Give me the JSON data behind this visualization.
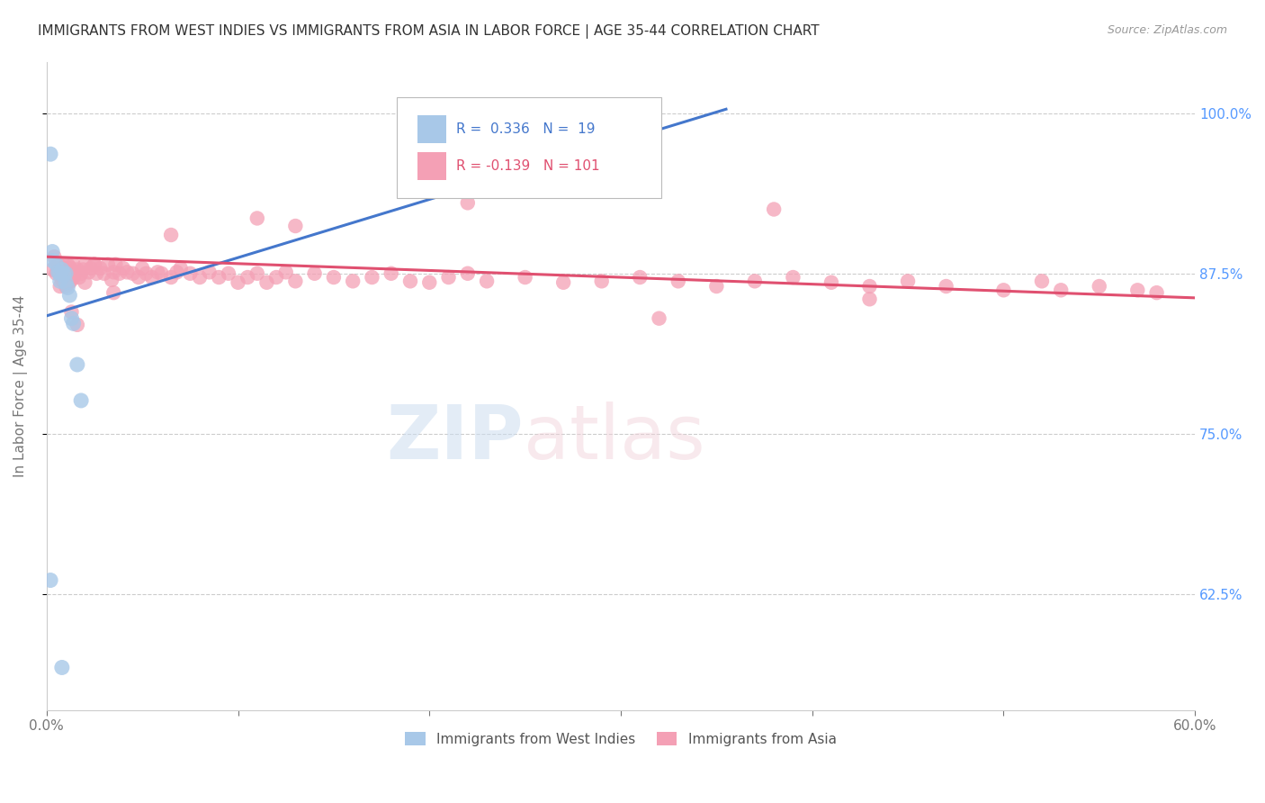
{
  "title": "IMMIGRANTS FROM WEST INDIES VS IMMIGRANTS FROM ASIA IN LABOR FORCE | AGE 35-44 CORRELATION CHART",
  "source": "Source: ZipAtlas.com",
  "ylabel": "In Labor Force | Age 35-44",
  "xlim": [
    0.0,
    0.6
  ],
  "ylim": [
    0.535,
    1.04
  ],
  "xticks": [
    0.0,
    0.1,
    0.2,
    0.3,
    0.4,
    0.5,
    0.6
  ],
  "xticklabels": [
    "0.0%",
    "",
    "",
    "",
    "",
    "",
    "60.0%"
  ],
  "ytick_positions": [
    0.625,
    0.75,
    0.875,
    1.0
  ],
  "ytick_labels": [
    "62.5%",
    "75.0%",
    "87.5%",
    "100.0%"
  ],
  "legend1_label": "Immigrants from West Indies",
  "legend2_label": "Immigrants from Asia",
  "r_blue": 0.336,
  "n_blue": 19,
  "r_pink": -0.139,
  "n_pink": 101,
  "blue_color": "#a8c8e8",
  "pink_color": "#f4a0b5",
  "blue_line_color": "#4477cc",
  "pink_line_color": "#e05070",
  "tick_label_color_right": "#5599ff",
  "blue_line_x0": 0.0,
  "blue_line_y0": 0.842,
  "blue_line_x1": 0.355,
  "blue_line_y1": 1.003,
  "pink_line_x0": 0.0,
  "pink_line_y0": 0.888,
  "pink_line_x1": 0.6,
  "pink_line_y1": 0.856,
  "blue_scatter_x": [
    0.002,
    0.003,
    0.003,
    0.005,
    0.006,
    0.007,
    0.007,
    0.008,
    0.009,
    0.01,
    0.01,
    0.011,
    0.012,
    0.013,
    0.014,
    0.016,
    0.018,
    0.002,
    0.008
  ],
  "blue_scatter_y": [
    0.968,
    0.892,
    0.885,
    0.882,
    0.876,
    0.875,
    0.869,
    0.878,
    0.874,
    0.875,
    0.868,
    0.864,
    0.858,
    0.84,
    0.836,
    0.804,
    0.776,
    0.636,
    0.568
  ],
  "pink_scatter_x": [
    0.003,
    0.004,
    0.005,
    0.006,
    0.007,
    0.007,
    0.008,
    0.008,
    0.009,
    0.009,
    0.01,
    0.01,
    0.011,
    0.011,
    0.012,
    0.012,
    0.013,
    0.013,
    0.014,
    0.014,
    0.015,
    0.016,
    0.017,
    0.018,
    0.019,
    0.02,
    0.02,
    0.022,
    0.023,
    0.025,
    0.026,
    0.028,
    0.03,
    0.032,
    0.034,
    0.035,
    0.036,
    0.038,
    0.04,
    0.042,
    0.045,
    0.048,
    0.05,
    0.052,
    0.055,
    0.058,
    0.06,
    0.065,
    0.068,
    0.07,
    0.075,
    0.08,
    0.085,
    0.09,
    0.095,
    0.1,
    0.105,
    0.11,
    0.115,
    0.12,
    0.125,
    0.13,
    0.14,
    0.15,
    0.16,
    0.17,
    0.18,
    0.19,
    0.2,
    0.21,
    0.22,
    0.23,
    0.25,
    0.27,
    0.29,
    0.31,
    0.33,
    0.35,
    0.37,
    0.39,
    0.41,
    0.43,
    0.45,
    0.47,
    0.5,
    0.52,
    0.55,
    0.57,
    0.013,
    0.016,
    0.025,
    0.035,
    0.065,
    0.11,
    0.13,
    0.22,
    0.32,
    0.38,
    0.43,
    0.53,
    0.58
  ],
  "pink_scatter_y": [
    0.878,
    0.888,
    0.875,
    0.882,
    0.875,
    0.865,
    0.88,
    0.87,
    0.882,
    0.872,
    0.876,
    0.865,
    0.882,
    0.872,
    0.88,
    0.868,
    0.878,
    0.87,
    0.882,
    0.872,
    0.876,
    0.878,
    0.872,
    0.875,
    0.878,
    0.882,
    0.868,
    0.876,
    0.879,
    0.882,
    0.875,
    0.879,
    0.875,
    0.882,
    0.87,
    0.876,
    0.882,
    0.875,
    0.879,
    0.876,
    0.875,
    0.872,
    0.879,
    0.875,
    0.872,
    0.876,
    0.875,
    0.872,
    0.876,
    0.879,
    0.875,
    0.872,
    0.876,
    0.872,
    0.875,
    0.868,
    0.872,
    0.875,
    0.868,
    0.872,
    0.876,
    0.869,
    0.875,
    0.872,
    0.869,
    0.872,
    0.875,
    0.869,
    0.868,
    0.872,
    0.875,
    0.869,
    0.872,
    0.868,
    0.869,
    0.872,
    0.869,
    0.865,
    0.869,
    0.872,
    0.868,
    0.865,
    0.869,
    0.865,
    0.862,
    0.869,
    0.865,
    0.862,
    0.845,
    0.835,
    0.882,
    0.86,
    0.905,
    0.918,
    0.912,
    0.93,
    0.84,
    0.925,
    0.855,
    0.862,
    0.86
  ],
  "figsize": [
    14.06,
    8.92
  ],
  "dpi": 100
}
